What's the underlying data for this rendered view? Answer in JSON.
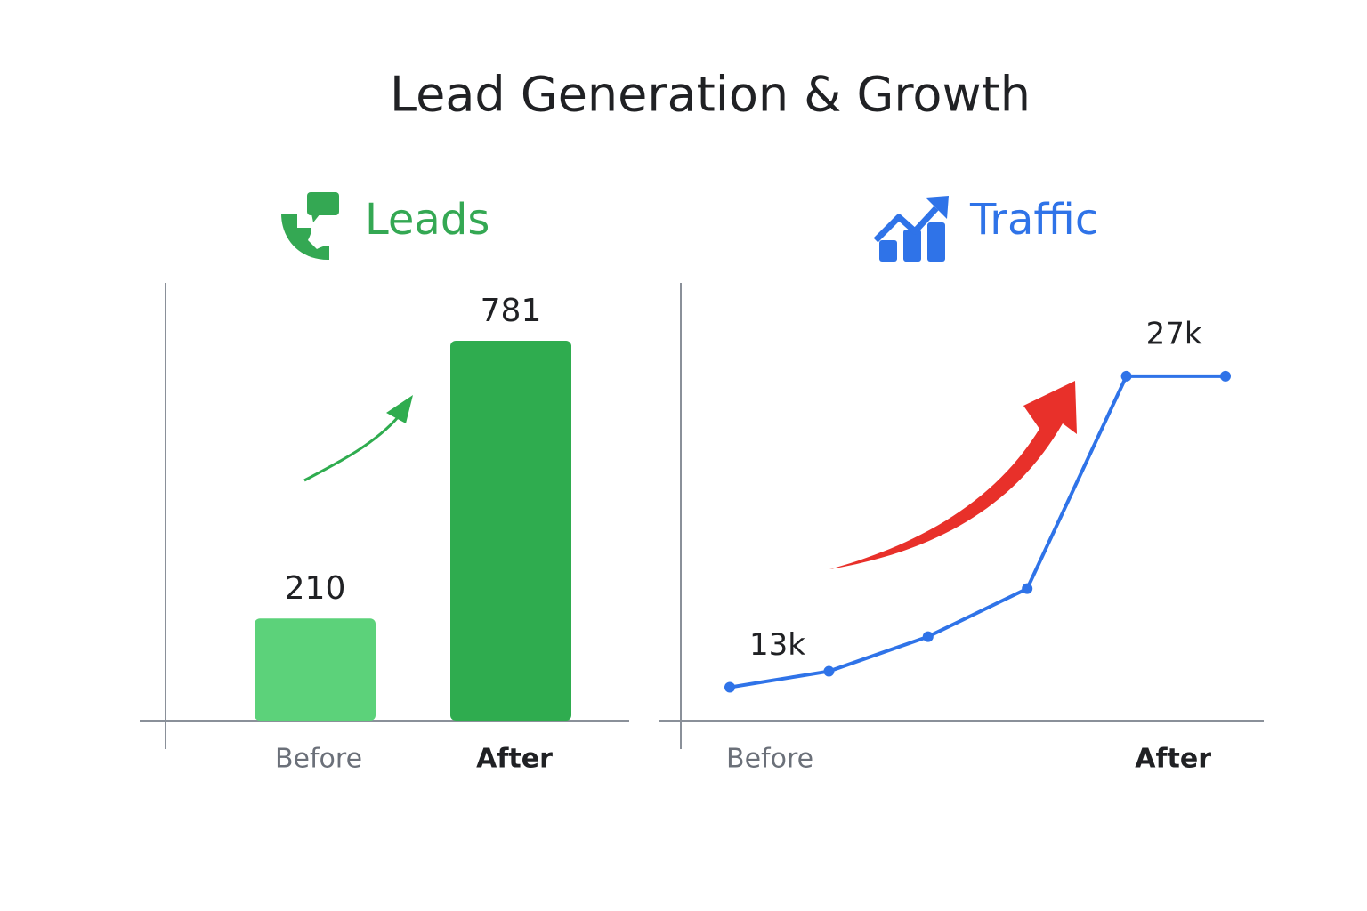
{
  "title": "Lead Generation & Growth",
  "chart_data": [
    {
      "type": "bar",
      "title": "Leads",
      "title_color": "#34a853",
      "categories": [
        "Before",
        "After"
      ],
      "values": [
        210,
        781
      ],
      "colors": [
        "#5cd27a",
        "#2fac4f"
      ],
      "ylim": [
        0,
        900
      ]
    },
    {
      "type": "line",
      "title": "Traffic",
      "title_color": "#2f73e8",
      "categories": [
        "Before",
        null,
        null,
        null,
        null,
        "After"
      ],
      "series": [
        {
          "name": "Traffic",
          "color": "#2f73e8",
          "values": [
            13000,
            13720,
            15280,
            17440,
            27000,
            27000
          ],
          "value_labels": [
            "13k",
            null,
            null,
            null,
            "27k",
            null
          ]
        }
      ],
      "ylim": [
        11500,
        31200
      ]
    }
  ]
}
